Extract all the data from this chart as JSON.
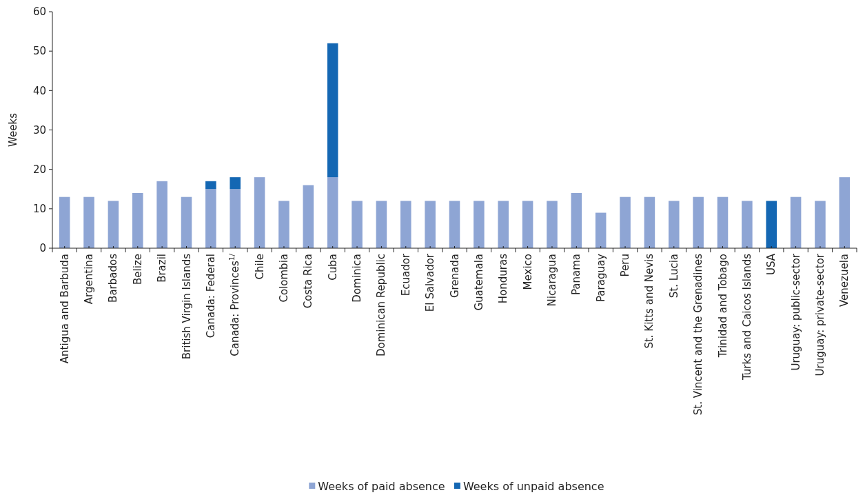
{
  "chart_data": {
    "type": "bar",
    "stacked": true,
    "ylabel": "Weeks",
    "ylim": [
      0,
      60
    ],
    "yticks": [
      0,
      10,
      20,
      30,
      40,
      50,
      60
    ],
    "grid": false,
    "legend": "bottom",
    "categories": [
      "Antigua and Barbuda",
      "Argentina",
      "Barbados",
      "Belize",
      "Brazil",
      "British Virgin Islands",
      "Canada: Federal",
      "Canada: Provinces$^{1/}$",
      "Chile",
      "Colombia",
      "Costa Rica",
      "Cuba",
      "Dominica",
      "Dominican Republic",
      "Ecuador",
      "El Salvador",
      "Grenada",
      "Guatemala",
      "Honduras",
      "Mexico",
      "Nicaragua",
      "Panama",
      "Paraguay",
      "Peru",
      "St. Kitts and Nevis",
      "St. Lucia",
      "St. Vincent and the Grenadines",
      "Trinidad and Tobago",
      "Turks and Caicos Islands",
      "USA",
      "Uruguay: public-sector",
      "Uruguay: private-sector",
      "Venezuela"
    ],
    "series": [
      {
        "name": "Weeks of paid absence",
        "color": "#8ea5d4",
        "values": [
          13,
          13,
          12,
          14,
          17,
          13,
          15,
          15,
          18,
          12,
          16,
          18,
          12,
          12,
          12,
          12,
          12,
          12,
          12,
          12,
          12,
          14,
          9,
          13,
          13,
          12,
          13,
          13,
          12,
          0,
          13,
          12,
          18
        ]
      },
      {
        "name": "Weeks of unpaid absence",
        "color": "#1467b3",
        "values": [
          0,
          0,
          0,
          0,
          0,
          0,
          2,
          3,
          0,
          0,
          0,
          34,
          0,
          0,
          0,
          0,
          0,
          0,
          0,
          0,
          0,
          0,
          0,
          0,
          0,
          0,
          0,
          0,
          0,
          12,
          0,
          0,
          0
        ]
      }
    ]
  }
}
